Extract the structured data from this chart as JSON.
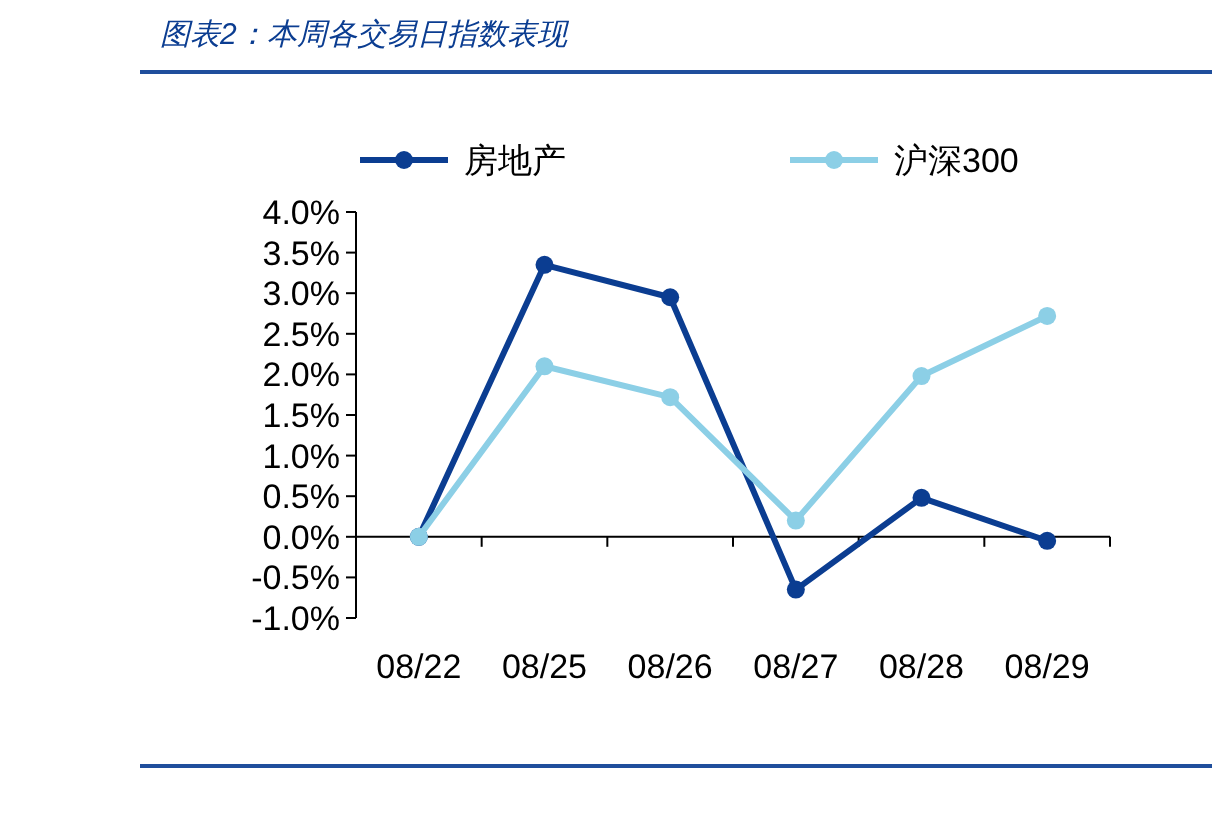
{
  "chart_data": {
    "type": "line",
    "title": "图表2：本周各交易日指数表现",
    "categories": [
      "08/22",
      "08/25",
      "08/26",
      "08/27",
      "08/28",
      "08/29"
    ],
    "series": [
      {
        "name": "房地产",
        "color": "#0b3d91",
        "values": [
          0,
          3.35,
          2.95,
          -0.65,
          0.48,
          -0.05
        ]
      },
      {
        "name": "沪深300",
        "color": "#8ccfe6",
        "values": [
          0,
          2.1,
          1.72,
          0.2,
          1.98,
          2.72
        ]
      }
    ],
    "ylim": [
      -1,
      4
    ],
    "yticks": [
      {
        "value": -1,
        "label": "-1.0%"
      },
      {
        "value": -0.5,
        "label": "-0.5%"
      },
      {
        "value": 0,
        "label": "0.0%"
      },
      {
        "value": 0.5,
        "label": "0.5%"
      },
      {
        "value": 1,
        "label": "1.0%"
      },
      {
        "value": 1.5,
        "label": "1.5%"
      },
      {
        "value": 2,
        "label": "2.0%"
      },
      {
        "value": 2.5,
        "label": "2.5%"
      },
      {
        "value": 3,
        "label": "3.0%"
      },
      {
        "value": 3.5,
        "label": "3.5%"
      },
      {
        "value": 4,
        "label": "4.0%"
      }
    ],
    "marker": "circle",
    "line_style": "solid",
    "legend": "top"
  }
}
